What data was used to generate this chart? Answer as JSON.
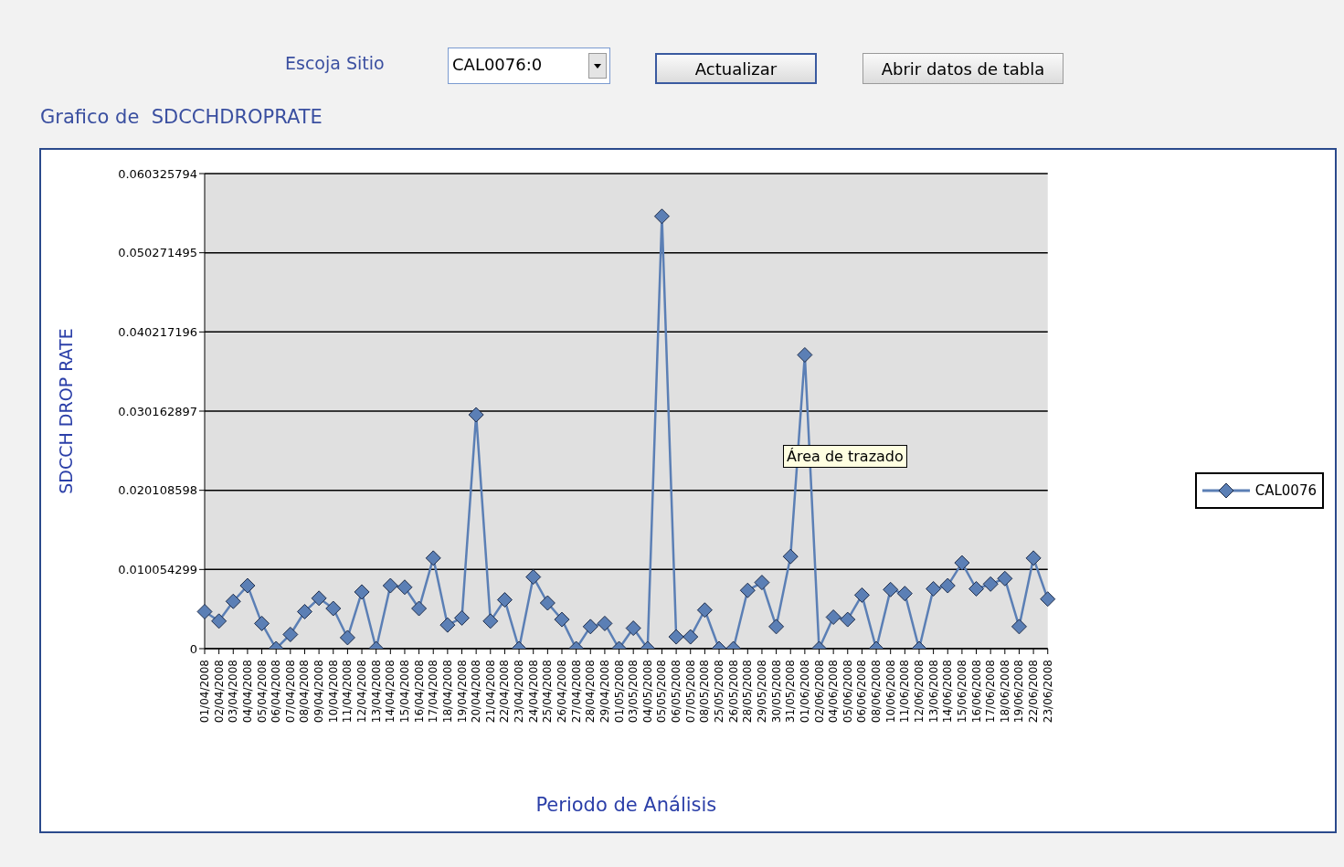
{
  "chart_data": {
    "type": "line",
    "title": "Grafico de  SDCCHDROPRATE",
    "xlabel": "Periodo de Análisis",
    "ylabel": "SDCCH DROP RATE",
    "categories": [
      "01/04/2008",
      "02/04/2008",
      "03/04/2008",
      "04/04/2008",
      "05/04/2008",
      "06/04/2008",
      "07/04/2008",
      "08/04/2008",
      "09/04/2008",
      "10/04/2008",
      "11/04/2008",
      "12/04/2008",
      "13/04/2008",
      "14/04/2008",
      "15/04/2008",
      "16/04/2008",
      "17/04/2008",
      "18/04/2008",
      "19/04/2008",
      "20/04/2008",
      "21/04/2008",
      "22/04/2008",
      "23/04/2008",
      "24/04/2008",
      "25/04/2008",
      "26/04/2008",
      "27/04/2008",
      "28/04/2008",
      "29/04/2008",
      "01/05/2008",
      "03/05/2008",
      "04/05/2008",
      "05/05/2008",
      "06/05/2008",
      "07/05/2008",
      "08/05/2008",
      "25/05/2008",
      "26/05/2008",
      "28/05/2008",
      "29/05/2008",
      "30/05/2008",
      "31/05/2008",
      "01/06/2008",
      "02/06/2008",
      "04/06/2008",
      "05/06/2008",
      "06/06/2008",
      "08/06/2008",
      "10/06/2008",
      "11/06/2008",
      "12/06/2008",
      "13/06/2008",
      "14/06/2008",
      "15/06/2008",
      "16/06/2008",
      "17/06/2008",
      "18/06/2008",
      "19/06/2008",
      "22/06/2008",
      "23/06/2008"
    ],
    "series": [
      {
        "name": "CAL0076",
        "color": "#5b7fb5",
        "values": [
          0.0047,
          0.0035,
          0.006,
          0.008,
          0.0032,
          0,
          0.0018,
          0.0047,
          0.0064,
          0.0051,
          0.0014,
          0.0072,
          0,
          0.008,
          0.0078,
          0.0051,
          0.0115,
          0.003,
          0.0039,
          0.0297,
          0.0035,
          0.0062,
          0,
          0.0091,
          0.0058,
          0.0037,
          0,
          0.0028,
          0.0032,
          0,
          0.0026,
          0,
          0.0549,
          0.0015,
          0.0015,
          0.0049,
          0,
          0,
          0.0074,
          0.0084,
          0.0028,
          0.0117,
          0.0373,
          0,
          0.004,
          0.0037,
          0.0068,
          0,
          0.0075,
          0.007,
          0,
          0.0076,
          0.008,
          0.0109,
          0.0076,
          0.0082,
          0.0089,
          0.0028,
          0.0115,
          0.0063
        ]
      }
    ],
    "ylim": [
      0,
      0.060325794
    ],
    "yticks": [
      0,
      0.010054299,
      0.020108598,
      0.030162897,
      0.040217196,
      0.050271495,
      0.060325794
    ],
    "grid": "y",
    "legend": "right",
    "marker": "diamond",
    "line_style": "solid",
    "annotations": [
      "Escoja Sitio",
      "CAL0076:0",
      "Actualizar",
      "Abrir datos de tabla",
      "Área de trazado"
    ]
  }
}
